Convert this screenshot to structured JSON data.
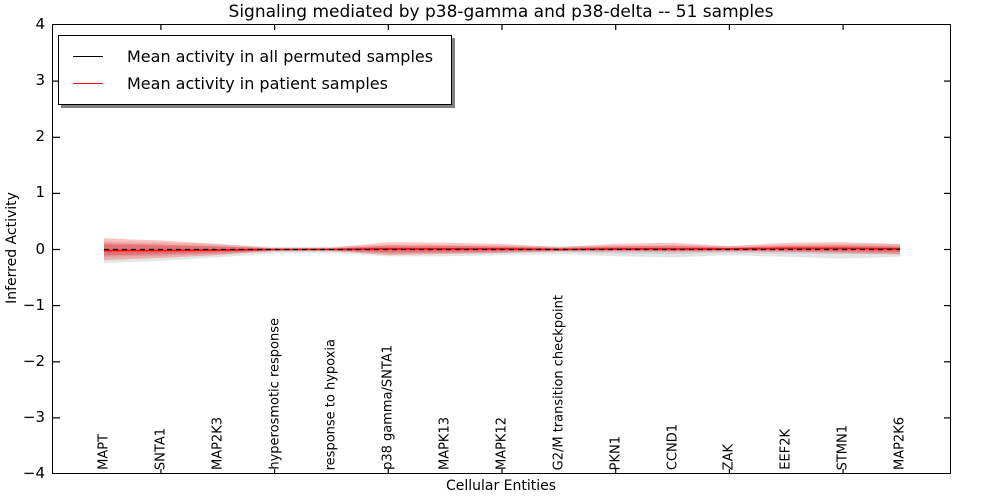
{
  "figure": {
    "background": "#ffffff",
    "axis_color": "#000000"
  },
  "chart_data": {
    "type": "line",
    "title": "Signaling mediated by p38-gamma and p38-delta -- 51 samples",
    "xlabel": "Cellular Entities",
    "ylabel": "Inferred Activity",
    "ylim": [
      -4,
      4
    ],
    "yticks": [
      4,
      3,
      2,
      1,
      0,
      -1,
      -2,
      -3,
      -4
    ],
    "yticklabels": [
      "4",
      "3",
      "2",
      "1",
      "0",
      "−1",
      "−2",
      "−3",
      "−4"
    ],
    "grid": false,
    "categories": [
      "MAPT",
      "SNTA1",
      "MAP2K3",
      "hyperosmotic response",
      "response to hypoxia",
      "p38 gamma/SNTA1",
      "MAPK13",
      "MAPK12",
      "G2/M transition checkpoint",
      "PKN1",
      "CCND1",
      "ZAK",
      "EEF2K",
      "STMN1",
      "MAP2K6"
    ],
    "series": [
      {
        "name": "Mean activity in all permuted samples",
        "color": "#000000",
        "style": "dashed",
        "values": [
          0,
          0,
          0,
          0,
          0,
          0,
          0,
          0,
          0,
          0,
          0,
          0,
          0,
          0,
          0
        ]
      },
      {
        "name": "Mean activity in patient samples",
        "color": "#ff0000",
        "style": "solid",
        "values": [
          -0.02,
          -0.02,
          -0.01,
          0,
          0,
          0.01,
          0.01,
          0.01,
          0,
          0.01,
          0.01,
          0.01,
          0.02,
          0.02,
          0.01
        ]
      }
    ],
    "bands": [
      {
        "name": "permuted-samples-band",
        "color": "#888888",
        "opacity": 0.22,
        "low": [
          -0.24,
          -0.2,
          -0.14,
          -0.07,
          -0.06,
          -0.12,
          -0.12,
          -0.1,
          -0.08,
          -0.12,
          -0.14,
          -0.1,
          -0.13,
          -0.16,
          -0.13
        ],
        "high": [
          0.15,
          0.12,
          0.09,
          0.05,
          0.05,
          0.08,
          0.08,
          0.07,
          0.06,
          0.07,
          0.08,
          0.06,
          0.08,
          0.1,
          0.09
        ]
      },
      {
        "name": "patient-samples-band",
        "color": "#ff0000",
        "opacity": 0.24,
        "low": [
          -0.19,
          -0.15,
          -0.1,
          -0.02,
          -0.02,
          -0.1,
          -0.08,
          -0.06,
          -0.03,
          -0.03,
          -0.04,
          -0.03,
          -0.04,
          -0.06,
          -0.09
        ],
        "high": [
          0.2,
          0.16,
          0.1,
          0.02,
          0.03,
          0.13,
          0.12,
          0.1,
          0.04,
          0.1,
          0.12,
          0.06,
          0.12,
          0.13,
          0.1
        ]
      }
    ],
    "legend": {
      "position": "upper-left",
      "entries": [
        {
          "label": "Mean activity in all permuted samples",
          "color": "#000000"
        },
        {
          "label": "Mean activity in patient samples",
          "color": "#ff0000"
        }
      ]
    }
  }
}
